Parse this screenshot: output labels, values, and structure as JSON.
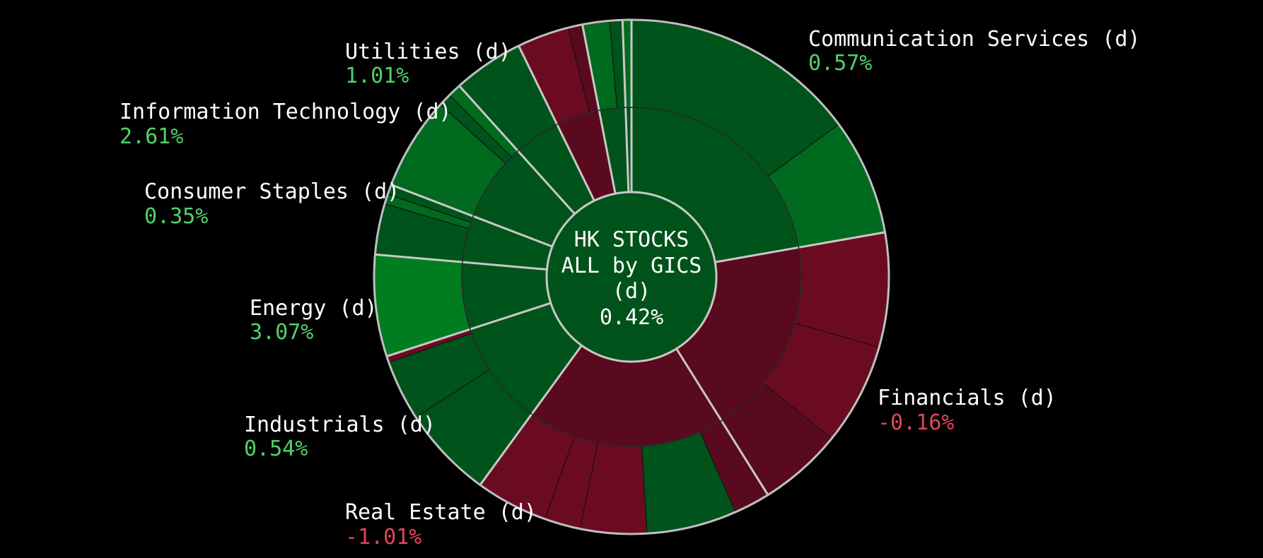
{
  "chart_data": {
    "type": "sunburst",
    "center": {
      "title_lines": [
        "HK STOCKS",
        "ALL by GICS",
        "(d)"
      ],
      "value": "0.42%"
    },
    "colors": {
      "positive_text": "#4fd36a",
      "negative_text": "#e0455e",
      "green_1": "#00531a",
      "green_2": "#006a1e",
      "green_3": "#007d1f",
      "red_1": "#5a0a1e",
      "red_2": "#6b0b22",
      "separator": "#c8c8c8"
    },
    "sectors": [
      {
        "name": "Communication Services (d)",
        "value": "0.57%",
        "sign": "positive",
        "segments": [
          {
            "share": 0.67,
            "shade": "green_1"
          },
          {
            "share": 0.33,
            "shade": "green_2"
          }
        ]
      },
      {
        "name": "Financials (d)",
        "value": "-0.16%",
        "sign": "negative",
        "segments": [
          {
            "share": 0.38,
            "shade": "red_2"
          },
          {
            "share": 0.34,
            "shade": "red_2"
          },
          {
            "share": 0.28,
            "shade": "red_1"
          }
        ]
      },
      {
        "name": "Real Estate (d)",
        "value": "-1.01%",
        "sign": "negative",
        "segments": [
          {
            "share": 0.12,
            "shade": "red_1"
          },
          {
            "share": 0.3,
            "shade": "green_1"
          },
          {
            "share": 0.22,
            "shade": "red_2"
          },
          {
            "share": 0.12,
            "shade": "red_2"
          },
          {
            "share": 0.24,
            "shade": "red_2"
          }
        ]
      },
      {
        "name": "Industrials (d)",
        "value": "0.54%",
        "sign": "positive",
        "segments": [
          {
            "share": 0.58,
            "shade": "green_1"
          },
          {
            "share": 0.38,
            "shade": "green_1"
          },
          {
            "share": 0.04,
            "shade": "red_2"
          }
        ]
      },
      {
        "name": "Energy (d)",
        "value": "3.07%",
        "sign": "positive",
        "segments": [
          {
            "share": 1.0,
            "shade": "green_3"
          }
        ]
      },
      {
        "name": "Consumer Staples (d)",
        "value": "0.35%",
        "sign": "positive",
        "segments": [
          {
            "share": 0.72,
            "shade": "green_1"
          },
          {
            "share": 0.14,
            "shade": "green_2"
          },
          {
            "share": 0.14,
            "shade": "green_1"
          }
        ]
      },
      {
        "name": "Information Technology (d)",
        "value": "2.61%",
        "sign": "positive",
        "segments": [
          {
            "share": 0.78,
            "shade": "green_2"
          },
          {
            "share": 0.11,
            "shade": "green_1"
          },
          {
            "share": 0.11,
            "shade": "green_2"
          }
        ]
      },
      {
        "name": "Utilities (d)",
        "value": "1.01%",
        "sign": "positive",
        "segments": [
          {
            "share": 1.0,
            "shade": "green_1"
          }
        ]
      },
      {
        "name": "",
        "value": "",
        "sign": "negative",
        "segments": [
          {
            "share": 0.78,
            "shade": "red_2"
          },
          {
            "share": 0.22,
            "shade": "red_1"
          }
        ]
      },
      {
        "name": "",
        "value": "",
        "sign": "positive",
        "segments": [
          {
            "share": 0.68,
            "shade": "green_2"
          },
          {
            "share": 0.32,
            "shade": "green_1"
          }
        ]
      },
      {
        "name": "",
        "value": "",
        "sign": "positive",
        "segments": [
          {
            "share": 1.0,
            "shade": "green_2"
          }
        ]
      }
    ],
    "legend": "none",
    "grid": false
  }
}
